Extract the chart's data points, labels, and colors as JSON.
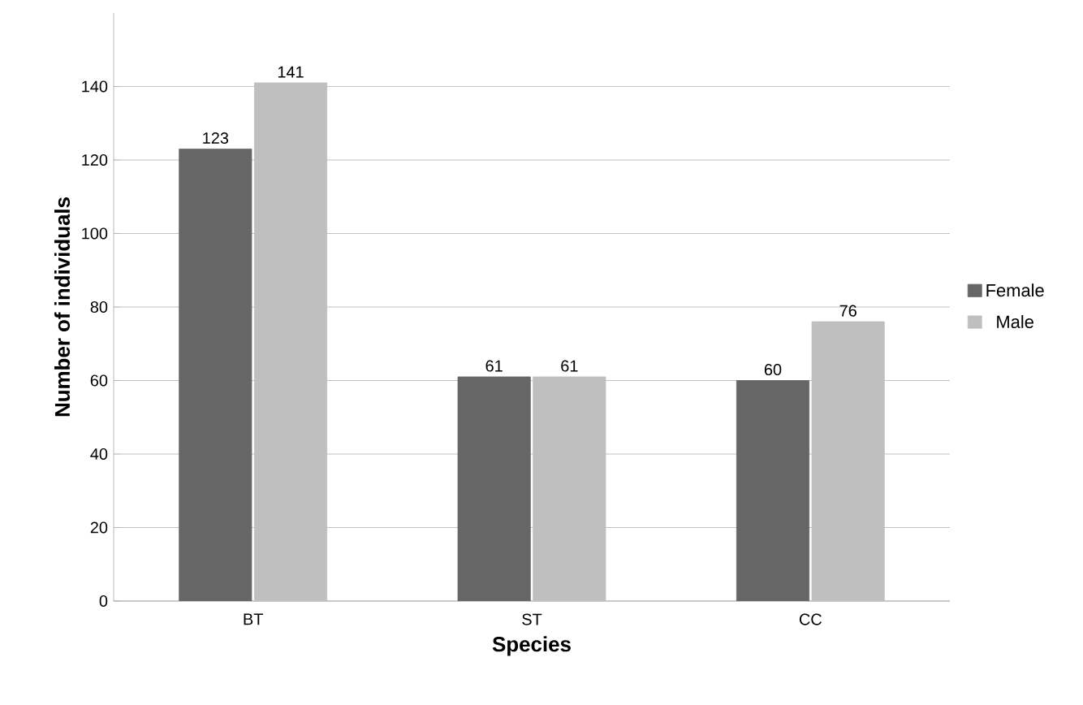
{
  "chart_data": {
    "type": "bar",
    "xlabel": "Species",
    "ylabel": "Number of individuals",
    "categories": [
      "BT",
      "ST",
      "CC"
    ],
    "series": [
      {
        "name": "Female",
        "color": "#666666",
        "values": [
          123,
          61,
          60
        ]
      },
      {
        "name": "Male",
        "color": "#bfbfbf",
        "values": [
          141,
          61,
          76
        ]
      }
    ],
    "ylim": [
      0,
      160
    ],
    "yticks": [
      0,
      20,
      40,
      60,
      80,
      100,
      120,
      140
    ],
    "grid": "y",
    "legend": "right",
    "data_labels": true
  }
}
